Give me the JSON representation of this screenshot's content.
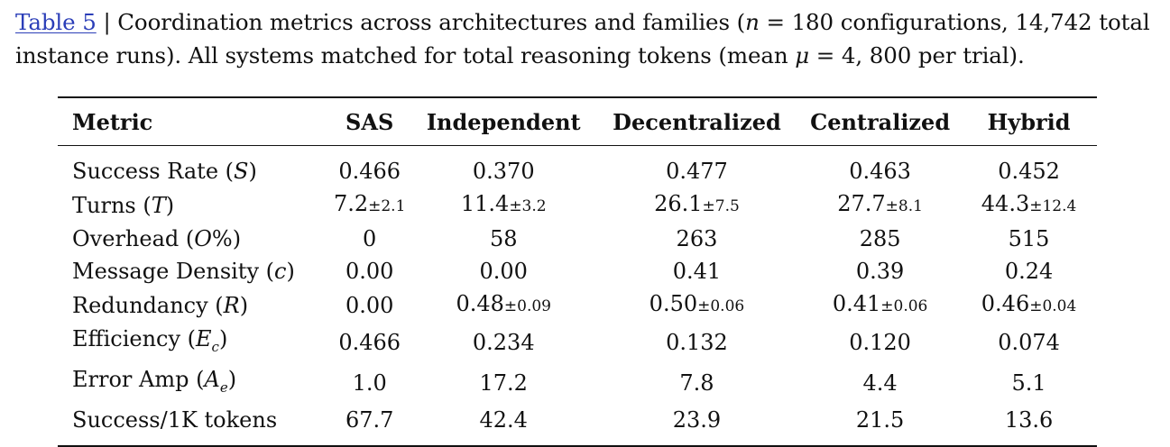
{
  "caption": {
    "label": "Table 5",
    "sep": " | ",
    "text_part1": "Coordination metrics across architectures and families (",
    "n_var": "n",
    "text_part2": " = 180 configurations, 14,742 total instance runs). All systems matched for total reasoning tokens (mean ",
    "mu_var": "μ",
    "text_part3": " = 4, 800 per trial)."
  },
  "table": {
    "headers": [
      "Metric",
      "SAS",
      "Independent",
      "Decentralized",
      "Centralized",
      "Hybrid"
    ],
    "rows": [
      {
        "metric": {
          "name": "Success Rate (",
          "var": "S",
          "sub": "",
          "close": ")"
        },
        "cells": [
          {
            "v": "0.466",
            "sd": ""
          },
          {
            "v": "0.370",
            "sd": ""
          },
          {
            "v": "0.477",
            "sd": ""
          },
          {
            "v": "0.463",
            "sd": ""
          },
          {
            "v": "0.452",
            "sd": ""
          }
        ]
      },
      {
        "metric": {
          "name": "Turns (",
          "var": "T",
          "sub": "",
          "close": ")"
        },
        "cells": [
          {
            "v": "7.2",
            "sd": "±2.1"
          },
          {
            "v": "11.4",
            "sd": "±3.2"
          },
          {
            "v": "26.1",
            "sd": "±7.5"
          },
          {
            "v": "27.7",
            "sd": "±8.1"
          },
          {
            "v": "44.3",
            "sd": "±12.4"
          }
        ]
      },
      {
        "metric": {
          "name": "Overhead (",
          "var": "O",
          "sub": "",
          "close": "%)"
        },
        "cells": [
          {
            "v": "0",
            "sd": ""
          },
          {
            "v": "58",
            "sd": ""
          },
          {
            "v": "263",
            "sd": ""
          },
          {
            "v": "285",
            "sd": ""
          },
          {
            "v": "515",
            "sd": ""
          }
        ]
      },
      {
        "metric": {
          "name": "Message Density (",
          "var": "c",
          "sub": "",
          "close": ")"
        },
        "cells": [
          {
            "v": "0.00",
            "sd": ""
          },
          {
            "v": "0.00",
            "sd": ""
          },
          {
            "v": "0.41",
            "sd": ""
          },
          {
            "v": "0.39",
            "sd": ""
          },
          {
            "v": "0.24",
            "sd": ""
          }
        ]
      },
      {
        "metric": {
          "name": "Redundancy (",
          "var": "R",
          "sub": "",
          "close": ")"
        },
        "cells": [
          {
            "v": "0.00",
            "sd": ""
          },
          {
            "v": "0.48",
            "sd": "±0.09"
          },
          {
            "v": "0.50",
            "sd": "±0.06"
          },
          {
            "v": "0.41",
            "sd": "±0.06"
          },
          {
            "v": "0.46",
            "sd": "±0.04"
          }
        ]
      },
      {
        "metric": {
          "name": "Efficiency (",
          "var": "E",
          "sub": "c",
          "close": ")"
        },
        "cells": [
          {
            "v": "0.466",
            "sd": ""
          },
          {
            "v": "0.234",
            "sd": ""
          },
          {
            "v": "0.132",
            "sd": ""
          },
          {
            "v": "0.120",
            "sd": ""
          },
          {
            "v": "0.074",
            "sd": ""
          }
        ]
      },
      {
        "metric": {
          "name": "Error Amp (",
          "var": "A",
          "sub": "e",
          "close": ")"
        },
        "cells": [
          {
            "v": "1.0",
            "sd": ""
          },
          {
            "v": "17.2",
            "sd": ""
          },
          {
            "v": "7.8",
            "sd": ""
          },
          {
            "v": "4.4",
            "sd": ""
          },
          {
            "v": "5.1",
            "sd": ""
          }
        ]
      },
      {
        "metric": {
          "name": "Success/1K tokens",
          "var": "",
          "sub": "",
          "close": ""
        },
        "cells": [
          {
            "v": "67.7",
            "sd": ""
          },
          {
            "v": "42.4",
            "sd": ""
          },
          {
            "v": "23.9",
            "sd": ""
          },
          {
            "v": "21.5",
            "sd": ""
          },
          {
            "v": "13.6",
            "sd": ""
          }
        ]
      }
    ]
  },
  "colors": {
    "link": "#2b3eb8",
    "text": "#111111"
  }
}
